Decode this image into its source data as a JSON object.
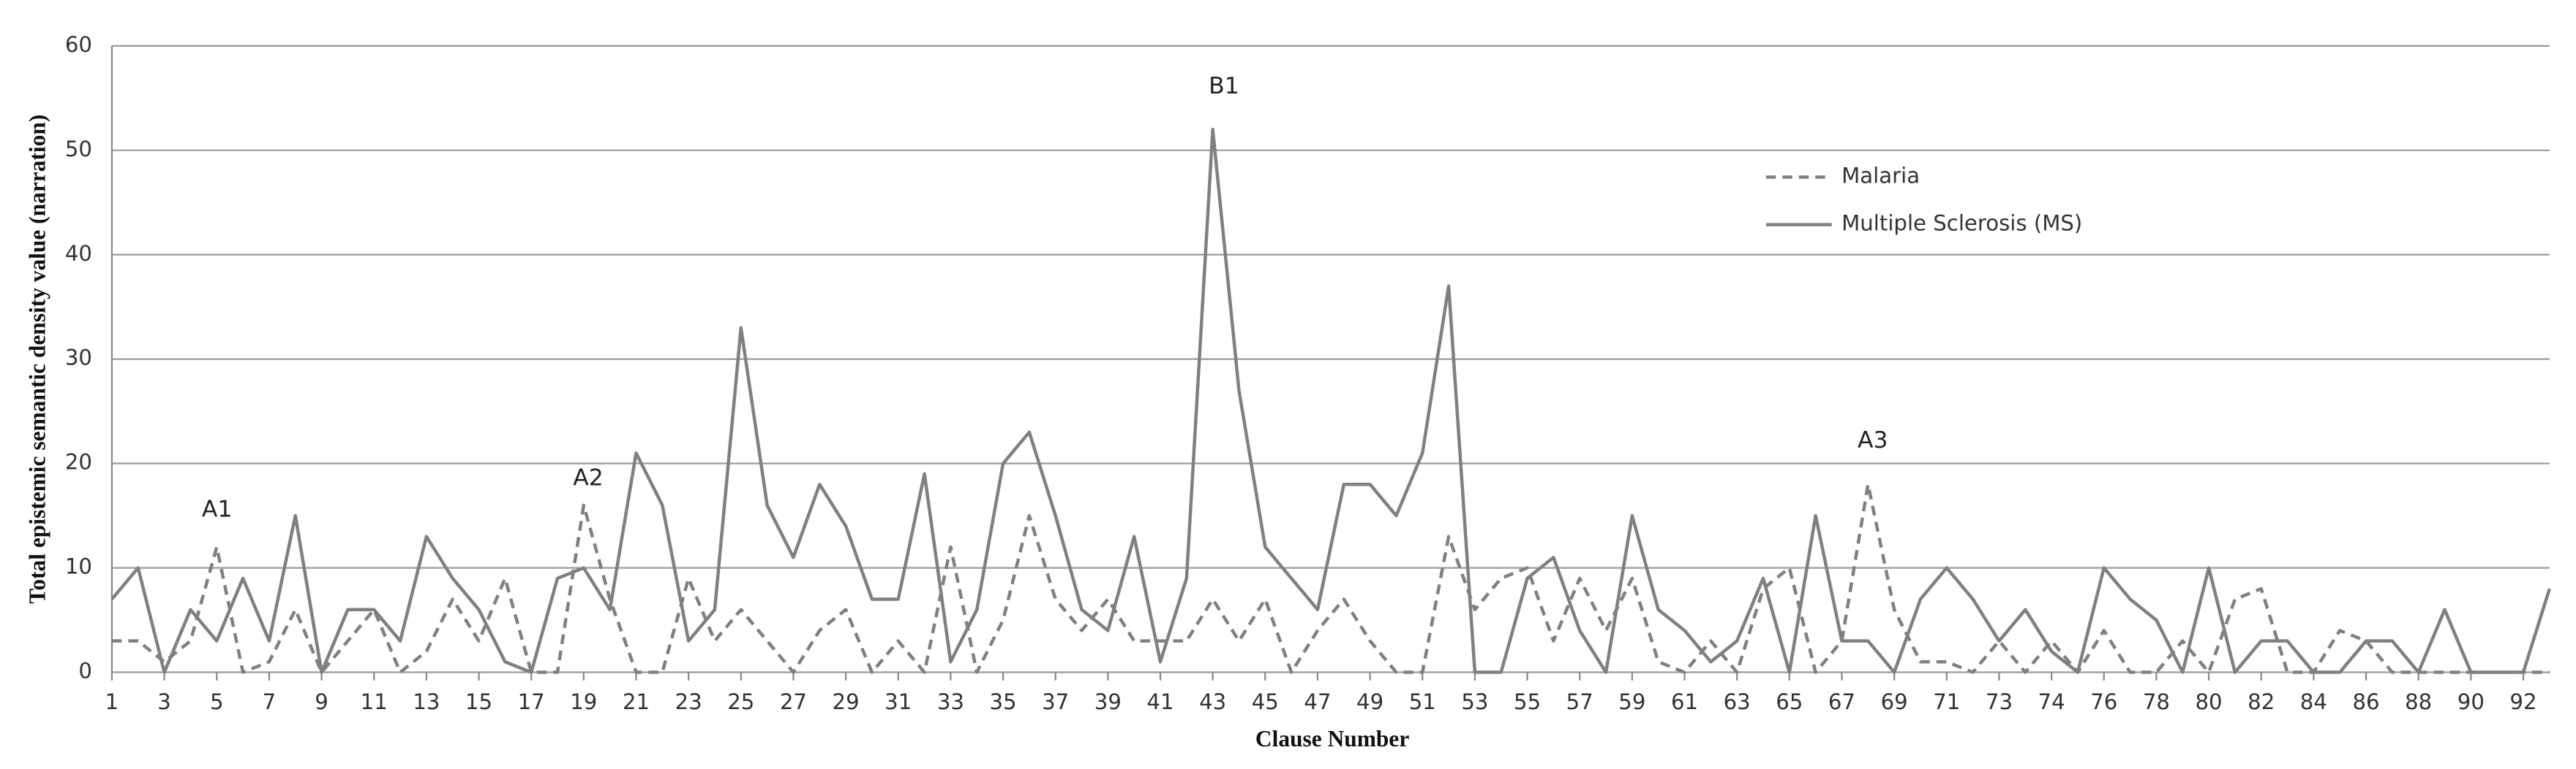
{
  "chart_data": {
    "type": "line",
    "x_label": "Clause Number",
    "y_label": "Total epistemic semantic density value (narration)",
    "categories": [
      "1",
      null,
      "3",
      null,
      "5",
      null,
      "7",
      null,
      "9",
      null,
      "11",
      null,
      "13",
      null,
      "15",
      null,
      "17",
      null,
      "19",
      null,
      "21",
      null,
      "23",
      null,
      "25",
      null,
      "27",
      null,
      "29",
      null,
      "31",
      null,
      "33",
      null,
      "35",
      null,
      "37",
      null,
      "39",
      null,
      "41",
      null,
      "43",
      null,
      "45",
      null,
      "47",
      null,
      "49",
      null,
      "51",
      null,
      "53",
      null,
      "55",
      null,
      "57",
      null,
      "59",
      null,
      "61",
      null,
      "63",
      null,
      "65",
      null,
      "67",
      null,
      "69",
      null,
      "71",
      null,
      "73",
      null,
      "74",
      null,
      "76",
      null,
      "78",
      null,
      "80",
      null,
      "82",
      null,
      "84",
      null,
      "86",
      null,
      "88",
      null,
      "90",
      null,
      "92",
      null
    ],
    "series": [
      {
        "name": "Malaria",
        "color": "#808080",
        "dash": true,
        "values": [
          3,
          3,
          1,
          3,
          12,
          0,
          1,
          6,
          0,
          3,
          6,
          0,
          2,
          7,
          3,
          9,
          0,
          0,
          16,
          7,
          0,
          0,
          9,
          3,
          6,
          3,
          0,
          4,
          6,
          0,
          3,
          0,
          12,
          0,
          5,
          15,
          7,
          4,
          7,
          3,
          3,
          3,
          7,
          3,
          7,
          0,
          4,
          7,
          3,
          0,
          0,
          13,
          6,
          9,
          10,
          3,
          9,
          4,
          9,
          1,
          0,
          3,
          0,
          8,
          10,
          0,
          3,
          18,
          6,
          1,
          1,
          0,
          3,
          0,
          3,
          0,
          4,
          0,
          0,
          3,
          0,
          7,
          8,
          0,
          0,
          4,
          3,
          0,
          0,
          0,
          0,
          0,
          0,
          0
        ]
      },
      {
        "name": "Multiple Sclerosis (MS)",
        "color": "#808080",
        "dash": false,
        "values": [
          7,
          10,
          0,
          6,
          3,
          9,
          3,
          15,
          0,
          6,
          6,
          3,
          13,
          9,
          6,
          1,
          0,
          9,
          10,
          6,
          21,
          16,
          3,
          6,
          33,
          16,
          11,
          18,
          14,
          7,
          7,
          19,
          1,
          6,
          20,
          23,
          15,
          6,
          4,
          13,
          1,
          9,
          52,
          27,
          12,
          9,
          6,
          18,
          18,
          15,
          21,
          37,
          0,
          0,
          9,
          11,
          4,
          0,
          15,
          6,
          4,
          1,
          3,
          9,
          0,
          15,
          3,
          3,
          0,
          7,
          10,
          7,
          3,
          6,
          2,
          0,
          10,
          7,
          5,
          0,
          10,
          0,
          3,
          3,
          0,
          0,
          3,
          3,
          0,
          6,
          0,
          0,
          0,
          8
        ]
      }
    ],
    "annotations": [
      "A1",
      "A2",
      "B1",
      "A3"
    ],
    "ylim": [
      0,
      60
    ],
    "yticks": [
      0,
      10,
      20,
      30,
      40,
      50,
      60
    ],
    "grid": true,
    "legend": "upper right"
  }
}
